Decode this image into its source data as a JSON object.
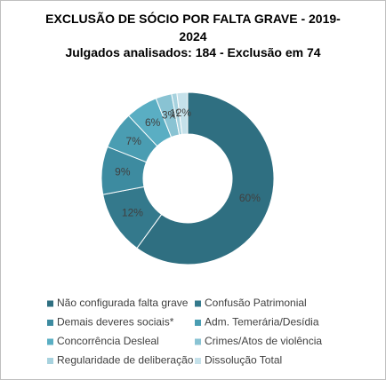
{
  "chart_data": {
    "type": "donut",
    "title": "EXCLUSÃO DE SÓCIO POR FALTA GRAVE - 2019-2024",
    "subtitle": "Julgados analisados: 184 - Exclusão  em 74",
    "categories": [
      "Não configurada falta grave",
      "Confusão Patrimonial",
      "Demais deveres sociais*",
      "Adm. Temerária/Desídia",
      "Concorrência Desleal",
      "Crimes/Atos de violência",
      "Regularidade de deliberação",
      "Dissolução Total"
    ],
    "values": [
      60,
      12,
      9,
      7,
      6,
      3,
      1,
      2
    ],
    "value_labels": [
      "60%",
      "12%",
      "9%",
      "7%",
      "6%",
      "3%",
      "1%",
      "2%"
    ],
    "colors": [
      "#2f6f81",
      "#34798c",
      "#3d8ba0",
      "#4a9db2",
      "#5aaec3",
      "#89c3d3",
      "#a7d2de",
      "#c5e1ea"
    ],
    "legend": "bottom"
  }
}
